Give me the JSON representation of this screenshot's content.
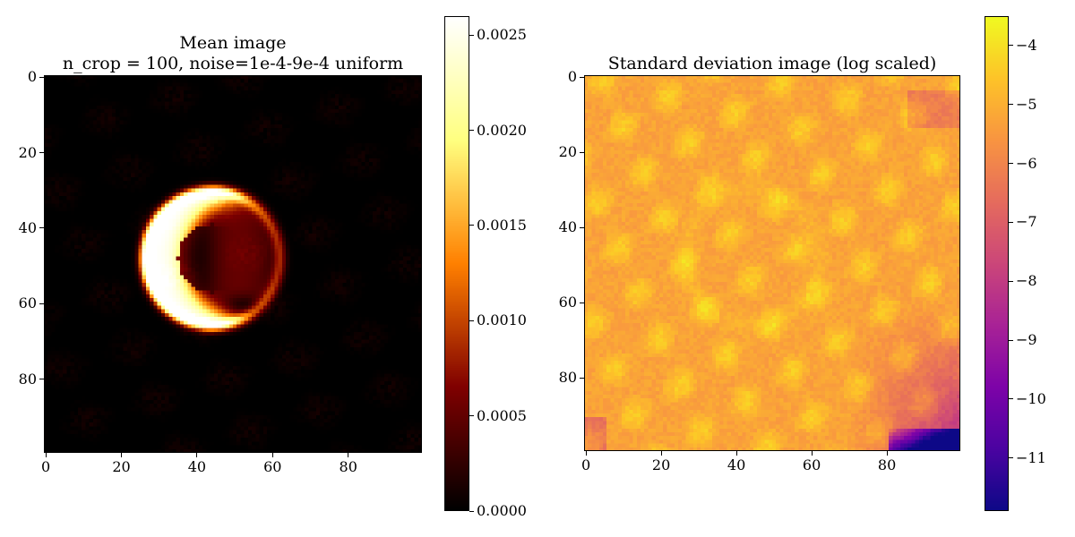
{
  "charts": {
    "mean": {
      "title_line1": "Mean image",
      "title_line2": "n_crop = 100, noise=1e-4-9e-4 uniform",
      "x_ticks": [
        "0",
        "20",
        "40",
        "60",
        "80"
      ],
      "y_ticks": [
        "0",
        "20",
        "40",
        "60",
        "80"
      ],
      "colorbar_ticks": [
        "0.0000",
        "0.0005",
        "0.0010",
        "0.0015",
        "0.0020",
        "0.0025"
      ],
      "colormap": "afmhot"
    },
    "std": {
      "title": "Standard deviation image (log scaled)",
      "x_ticks": [
        "0",
        "20",
        "40",
        "60",
        "80"
      ],
      "y_ticks": [
        "0",
        "20",
        "40",
        "60",
        "80"
      ],
      "colorbar_ticks": [
        "−4",
        "−5",
        "−6",
        "−7",
        "−8",
        "−9",
        "−10",
        "−11"
      ],
      "colormap": "plasma"
    }
  },
  "chart_data": [
    {
      "type": "heatmap",
      "title": "Mean image\nn_crop = 100, noise=1e-4-9e-4 uniform",
      "grid_size": [
        100,
        100
      ],
      "xlim": [
        0,
        99
      ],
      "ylim": [
        99,
        0
      ],
      "colorbar_range": [
        0.0,
        0.0026
      ],
      "colormap": "afmhot",
      "features": [
        {
          "shape": "ring",
          "center": [
            44,
            48
          ],
          "radius": 18,
          "peak": 0.0007
        },
        {
          "shape": "crescent",
          "center": [
            33,
            50
          ],
          "peak": 0.0025
        },
        {
          "shape": "dark spot",
          "center": [
            52,
            61
          ],
          "value": 0.0
        }
      ]
    },
    {
      "type": "heatmap",
      "title": "Standard deviation image (log scaled)",
      "grid_size": [
        100,
        100
      ],
      "xlim": [
        0,
        99
      ],
      "ylim": [
        99,
        0
      ],
      "colorbar_range": [
        -11.9,
        -3.5
      ],
      "colormap": "plasma",
      "typical_value": -5.0,
      "features": [
        {
          "shape": "low region",
          "location": "bottom-right corner",
          "min": -11.0
        }
      ]
    }
  ]
}
